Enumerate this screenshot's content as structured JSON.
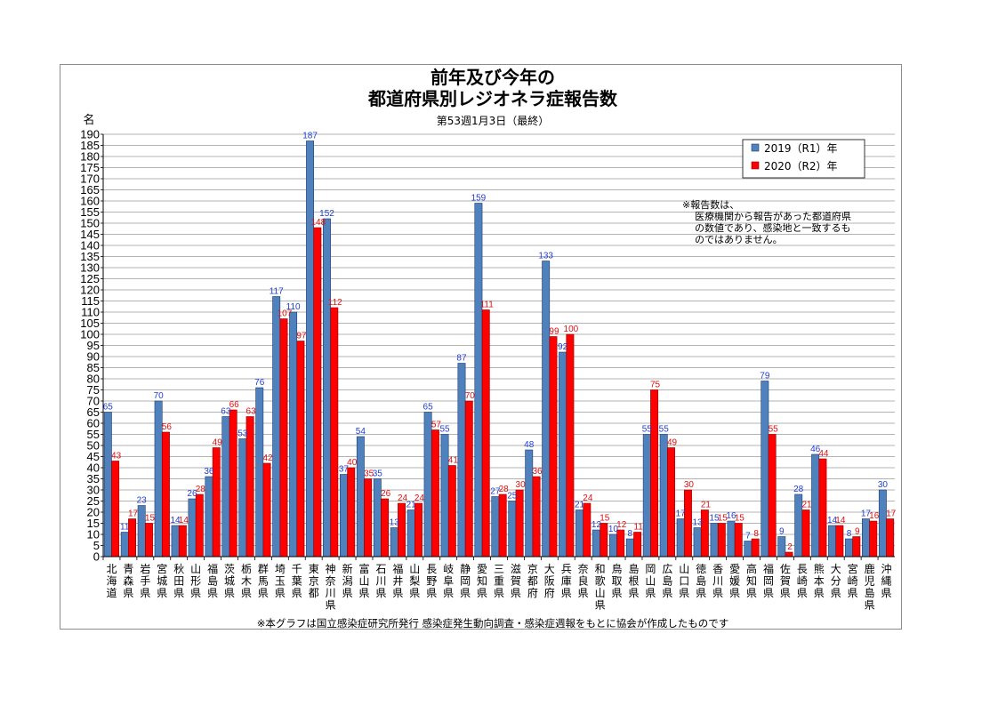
{
  "chart_data": {
    "type": "bar",
    "title_line1": "前年及び今年の",
    "title_line2": "都道府県別レジオネラ症報告数",
    "subtitle": "第53週1月3日（最終）",
    "ylabel": "名",
    "ylim": [
      0,
      190
    ],
    "ytick_step": 5,
    "grid": true,
    "legend_position": "top-right",
    "categories": [
      "北海道",
      "青森県",
      "岩手県",
      "宮城県",
      "秋田県",
      "山形県",
      "福島県",
      "茨城県",
      "栃木県",
      "群馬県",
      "埼玉県",
      "千葉県",
      "東京都",
      "神奈川県",
      "新潟県",
      "富山県",
      "石川県",
      "福井県",
      "山梨県",
      "長野県",
      "岐阜県",
      "静岡県",
      "愛知県",
      "三重県",
      "滋賀県",
      "京都府",
      "大阪府",
      "兵庫県",
      "奈良県",
      "和歌山県",
      "鳥取県",
      "島根県",
      "岡山県",
      "広島県",
      "山口県",
      "徳島県",
      "香川県",
      "愛媛県",
      "高知県",
      "福岡県",
      "佐賀県",
      "長崎県",
      "熊本県",
      "大分県",
      "宮崎県",
      "鹿児島県",
      "沖縄県"
    ],
    "series": [
      {
        "name": "2019（R1）年",
        "color": "#4f81bd",
        "values": [
          65,
          11,
          23,
          70,
          14,
          26,
          36,
          63,
          53,
          76,
          117,
          110,
          187,
          152,
          37,
          54,
          35,
          13,
          21,
          65,
          55,
          87,
          159,
          27,
          25,
          48,
          133,
          92,
          21,
          12,
          10,
          8,
          55,
          55,
          17,
          13,
          15,
          16,
          7,
          79,
          9,
          28,
          46,
          14,
          8,
          17,
          30
        ]
      },
      {
        "name": "2020（R2）年",
        "color": "#ff0000",
        "values": [
          43,
          17,
          15,
          56,
          14,
          28,
          49,
          66,
          63,
          42,
          107,
          97,
          148,
          112,
          40,
          35,
          26,
          24,
          24,
          57,
          41,
          70,
          111,
          28,
          30,
          36,
          99,
          100,
          24,
          15,
          12,
          11,
          75,
          49,
          30,
          21,
          15,
          15,
          8,
          55,
          2,
          21,
          44,
          14,
          9,
          16,
          17
        ]
      }
    ]
  },
  "note_lines": [
    "※報告数は、",
    "医療機関から報告があった都道府県",
    "の数値であり、感染地と一致するも",
    "のではありません。"
  ],
  "footer": "※本グラフは国立感染症研究所発行 感染症発生動向調査・感染症週報をもとに協会が作成したものです"
}
